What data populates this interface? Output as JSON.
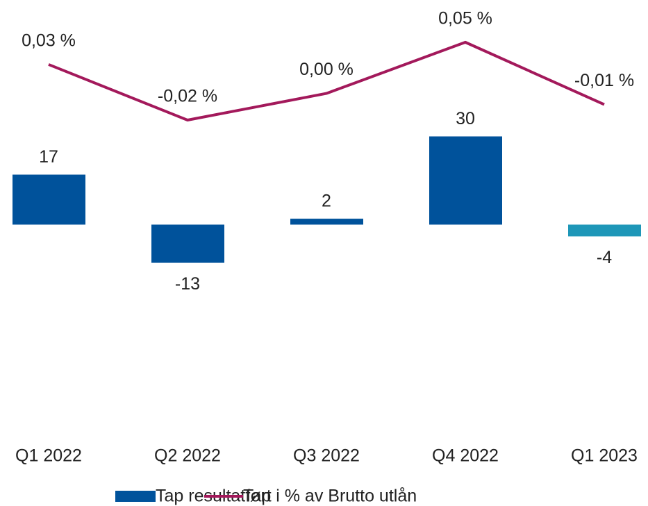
{
  "chart_data": {
    "type": "bar_line",
    "categories": [
      "Q1 2022",
      "Q2 2022",
      "Q3 2022",
      "Q4 2022",
      "Q1 2023"
    ],
    "series": [
      {
        "name": "Tap resultatført",
        "type": "bar",
        "color": "#00529b",
        "point_colors": [
          "#00529b",
          "#00529b",
          "#00529b",
          "#00529b",
          "#1e97b8"
        ],
        "values": [
          17,
          -13,
          2,
          30,
          -4
        ]
      },
      {
        "name": "Tap i % av Brutto utlån",
        "type": "line",
        "axis": "y2",
        "color": "#a3195b",
        "values": [
          0.03,
          -0.02,
          0.004,
          0.05,
          -0.006
        ],
        "value_labels": [
          "0,03 %",
          "-0,02 %",
          "0,00 %",
          "0,05 %",
          "-0,01 %"
        ]
      }
    ],
    "ylim": [
      -70,
      76.4
    ],
    "y2lim": [
      -0.299,
      0.088
    ],
    "legend": "bottom"
  }
}
